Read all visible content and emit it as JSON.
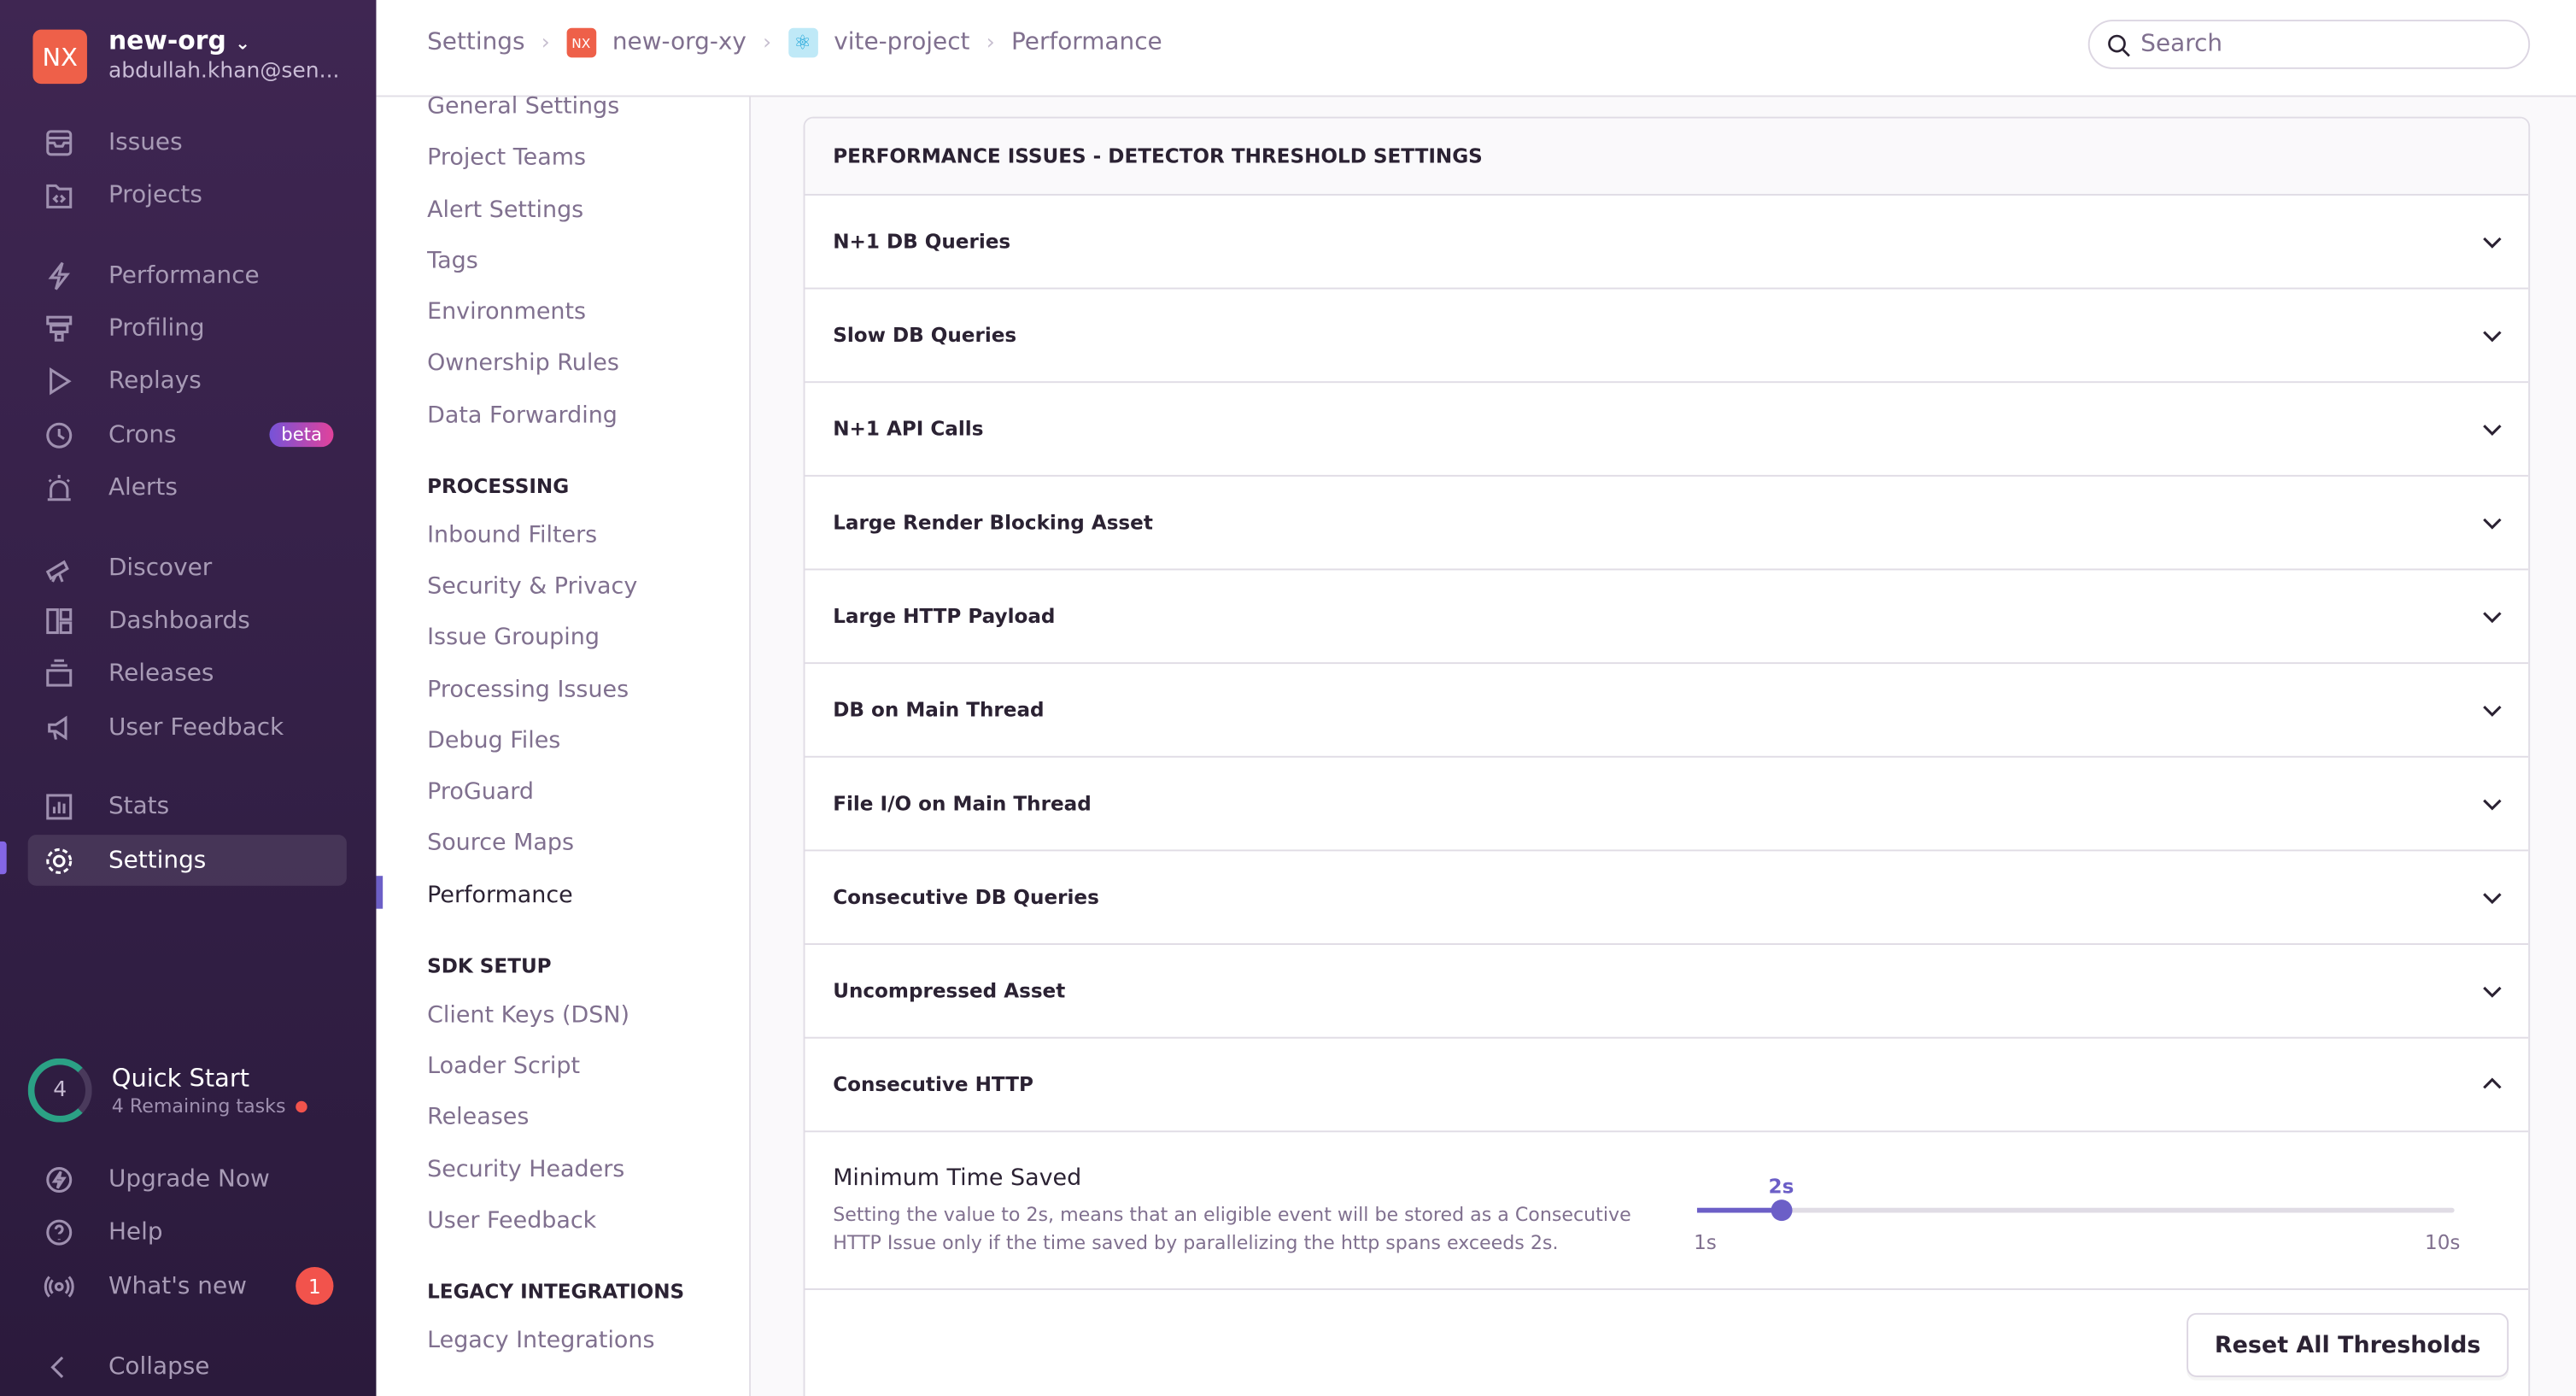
{
  "org": {
    "initials": "NX",
    "name": "new-org",
    "email": "abdullah.khan@sen..."
  },
  "sidebar": {
    "items": [
      {
        "label": "Issues",
        "icon": "issues-icon"
      },
      {
        "label": "Projects",
        "icon": "projects-icon"
      },
      {
        "label": "Performance",
        "icon": "lightning-icon"
      },
      {
        "label": "Profiling",
        "icon": "profiling-icon"
      },
      {
        "label": "Replays",
        "icon": "play-icon"
      },
      {
        "label": "Crons",
        "icon": "clock-icon",
        "badge": "beta"
      },
      {
        "label": "Alerts",
        "icon": "siren-icon"
      },
      {
        "label": "Discover",
        "icon": "telescope-icon"
      },
      {
        "label": "Dashboards",
        "icon": "dashboard-icon"
      },
      {
        "label": "Releases",
        "icon": "releases-icon"
      },
      {
        "label": "User Feedback",
        "icon": "megaphone-icon"
      },
      {
        "label": "Stats",
        "icon": "stats-icon"
      },
      {
        "label": "Settings",
        "icon": "gear-icon"
      }
    ],
    "quick_start": {
      "count": "4",
      "title": "Quick Start",
      "subtitle": "4 Remaining tasks"
    },
    "bottom": [
      {
        "label": "Upgrade Now"
      },
      {
        "label": "Help"
      },
      {
        "label": "What's new",
        "badge": "1"
      },
      {
        "label": "Collapse"
      }
    ]
  },
  "breadcrumb": [
    "Settings",
    "new-org-xy",
    "vite-project",
    "Performance"
  ],
  "search": {
    "placeholder": "Search"
  },
  "settings_nav": {
    "general": [
      "General Settings",
      "Project Teams",
      "Alert Settings",
      "Tags",
      "Environments",
      "Ownership Rules",
      "Data Forwarding"
    ],
    "processing_header": "PROCESSING",
    "processing": [
      "Inbound Filters",
      "Security & Privacy",
      "Issue Grouping",
      "Processing Issues",
      "Debug Files",
      "ProGuard",
      "Source Maps",
      "Performance"
    ],
    "sdk_header": "SDK SETUP",
    "sdk": [
      "Client Keys (DSN)",
      "Loader Script",
      "Releases",
      "Security Headers",
      "User Feedback"
    ],
    "legacy_header": "LEGACY INTEGRATIONS",
    "legacy": [
      "Legacy Integrations"
    ]
  },
  "panel": {
    "title": "PERFORMANCE ISSUES - DETECTOR THRESHOLD SETTINGS",
    "rows": [
      "N+1 DB Queries",
      "Slow DB Queries",
      "N+1 API Calls",
      "Large Render Blocking Asset",
      "Large HTTP Payload",
      "DB on Main Thread",
      "File I/O on Main Thread",
      "Consecutive DB Queries",
      "Uncompressed Asset",
      "Consecutive HTTP"
    ],
    "expanded": "Consecutive HTTP",
    "field": {
      "label": "Minimum Time Saved",
      "description": "Setting the value to 2s, means that an eligible event will be stored as a Consecutive HTTP Issue only if the time saved by parallelizing the http spans exceeds 2s.",
      "value": 2,
      "value_label": "2s",
      "min": 1,
      "max": 10,
      "min_label": "1s",
      "max_label": "10s"
    },
    "reset_label": "Reset All Thresholds"
  },
  "colors": {
    "accent": "#6c5fc7",
    "org": "#ee6049",
    "sidebar": "#3f2652"
  }
}
